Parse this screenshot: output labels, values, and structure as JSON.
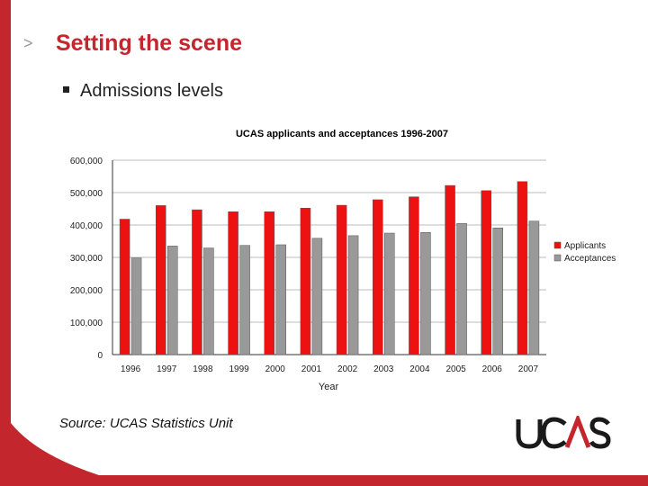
{
  "slide": {
    "chevron": ">",
    "title": "Setting the scene",
    "bullet": "Admissions levels",
    "source": "Source: UCAS Statistics Unit",
    "logo_text": "UCAS"
  },
  "colors": {
    "brand_red": "#c4262e",
    "applicants": "#ee1111",
    "acceptances": "#999999"
  },
  "chart_data": {
    "type": "bar",
    "title": "UCAS applicants and acceptances 1996-2007",
    "xlabel": "Year",
    "ylabel": "",
    "categories": [
      "1996",
      "1997",
      "1998",
      "1999",
      "2000",
      "2001",
      "2002",
      "2003",
      "2004",
      "2005",
      "2006",
      "2007"
    ],
    "ylim": [
      0,
      600000
    ],
    "yticks": [
      "0",
      "100,000",
      "200,000",
      "300,000",
      "400,000",
      "500,000",
      "600,000"
    ],
    "grid": true,
    "legend_position": "right",
    "series": [
      {
        "name": "Applicants",
        "values": [
          418000,
          460000,
          447000,
          441000,
          441000,
          452000,
          461000,
          478000,
          487000,
          522000,
          506000,
          534000
        ]
      },
      {
        "name": "Acceptances",
        "values": [
          298000,
          335000,
          329000,
          337000,
          339000,
          359000,
          367000,
          375000,
          377000,
          405000,
          391000,
          412000
        ]
      }
    ]
  }
}
